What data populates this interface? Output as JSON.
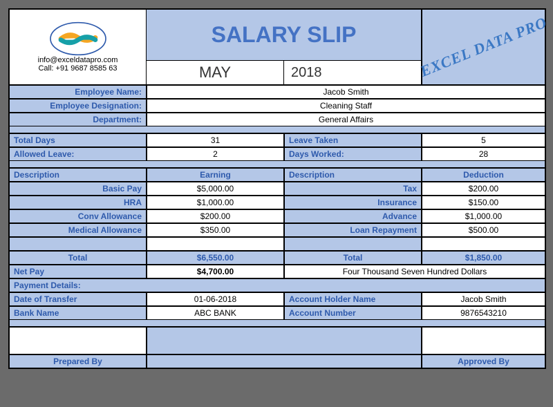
{
  "header": {
    "contact_email": "info@exceldatapro.com",
    "contact_phone": "Call: +91 9687 8585 63",
    "title": "SALARY SLIP",
    "month": "MAY",
    "year": "2018",
    "watermark": "EXCEL DATA PRO"
  },
  "employee": {
    "name_label": "Employee Name:",
    "name": "Jacob Smith",
    "designation_label": "Employee Designation:",
    "designation": "Cleaning Staff",
    "department_label": "Department:",
    "department": "General Affairs"
  },
  "attendance": {
    "total_days_label": "Total Days",
    "total_days": "31",
    "leave_taken_label": "Leave Taken",
    "leave_taken": "5",
    "allowed_leave_label": "Allowed Leave:",
    "allowed_leave": "2",
    "days_worked_label": "Days Worked:",
    "days_worked": "28"
  },
  "cols": {
    "desc_e": "Description",
    "earning": "Earning",
    "desc_d": "Description",
    "deduction": "Deduction"
  },
  "earnings": [
    {
      "label": "Basic Pay",
      "value": "$5,000.00"
    },
    {
      "label": "HRA",
      "value": "$1,000.00"
    },
    {
      "label": "Conv Allowance",
      "value": "$200.00"
    },
    {
      "label": "Medical Allowance",
      "value": "$350.00"
    }
  ],
  "deductions": [
    {
      "label": "Tax",
      "value": "$200.00"
    },
    {
      "label": "Insurance",
      "value": "$150.00"
    },
    {
      "label": "Advance",
      "value": "$1,000.00"
    },
    {
      "label": "Loan Repayment",
      "value": "$500.00"
    }
  ],
  "totals": {
    "label": "Total",
    "earning_total": "$6,550.00",
    "deduction_total": "$1,850.00",
    "netpay_label": "Net Pay",
    "netpay": "$4,700.00",
    "netpay_words": "Four Thousand Seven Hundred Dollars"
  },
  "payment": {
    "heading": "Payment Details:",
    "dot_label": "Date of Transfer",
    "dot": "01-06-2018",
    "holder_label": "Account Holder Name",
    "holder": "Jacob Smith",
    "bank_label": "Bank Name",
    "bank": "ABC BANK",
    "acct_label": "Account Number",
    "acct": "9876543210"
  },
  "footer": {
    "prepared": "Prepared By",
    "approved": "Approved By"
  },
  "colors": {
    "cell_blue": "#b4c7e7",
    "text_blue": "#2e5aac",
    "title_blue": "#4472c4",
    "page_bg": "#6b6b6b"
  }
}
